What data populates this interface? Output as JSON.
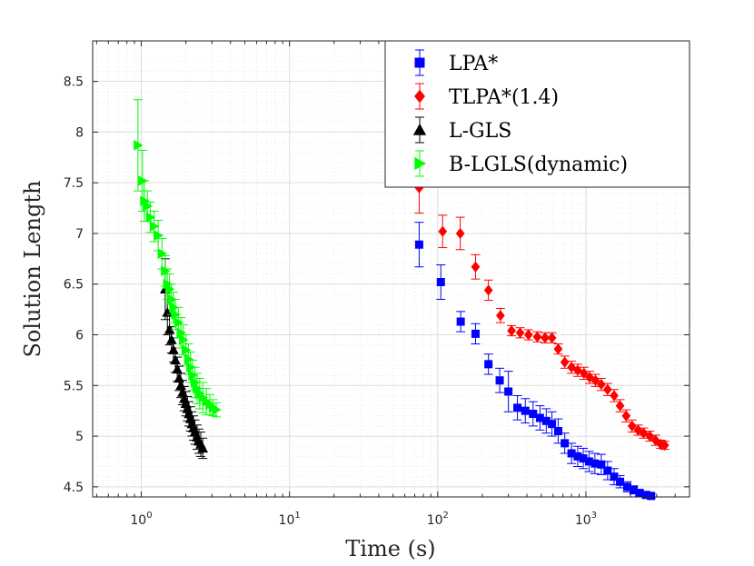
{
  "chart_data": {
    "type": "scatter",
    "xscale": "log",
    "xlabel": "Time (s)",
    "ylabel": "Solution Length",
    "xlim": [
      0.47,
      5000
    ],
    "ylim": [
      4.4,
      8.9
    ],
    "grid": true,
    "legend_position": "top-right",
    "xticks": [
      {
        "value": 1,
        "base": "10",
        "exp": "0"
      },
      {
        "value": 10,
        "base": "10",
        "exp": "1"
      },
      {
        "value": 100,
        "base": "10",
        "exp": "2"
      },
      {
        "value": 1000,
        "base": "10",
        "exp": "3"
      }
    ],
    "yticks": [
      {
        "value": 4.5,
        "label": "4.5"
      },
      {
        "value": 5,
        "label": "5"
      },
      {
        "value": 5.5,
        "label": "5.5"
      },
      {
        "value": 6,
        "label": "6"
      },
      {
        "value": 6.5,
        "label": "6.5"
      },
      {
        "value": 7,
        "label": "7"
      },
      {
        "value": 7.5,
        "label": "7.5"
      },
      {
        "value": 8,
        "label": "8"
      },
      {
        "value": 8.5,
        "label": "8.5"
      }
    ],
    "series": [
      {
        "name": "LPA*",
        "color": "#0000ff",
        "marker": "square",
        "points": [
          {
            "x": 75,
            "y": 6.89,
            "err": 0.22
          },
          {
            "x": 105,
            "y": 6.52,
            "err": 0.17
          },
          {
            "x": 143,
            "y": 6.13,
            "err": 0.1
          },
          {
            "x": 180,
            "y": 6.01,
            "err": 0.1
          },
          {
            "x": 220,
            "y": 5.71,
            "err": 0.1
          },
          {
            "x": 262,
            "y": 5.55,
            "err": 0.12
          },
          {
            "x": 300,
            "y": 5.44,
            "err": 0.2
          },
          {
            "x": 345,
            "y": 5.28,
            "err": 0.12
          },
          {
            "x": 390,
            "y": 5.25,
            "err": 0.12
          },
          {
            "x": 440,
            "y": 5.22,
            "err": 0.12
          },
          {
            "x": 490,
            "y": 5.18,
            "err": 0.12
          },
          {
            "x": 540,
            "y": 5.15,
            "err": 0.12
          },
          {
            "x": 590,
            "y": 5.12,
            "err": 0.12
          },
          {
            "x": 650,
            "y": 5.05,
            "err": 0.12
          },
          {
            "x": 720,
            "y": 4.93,
            "err": 0.1
          },
          {
            "x": 800,
            "y": 4.83,
            "err": 0.1
          },
          {
            "x": 880,
            "y": 4.8,
            "err": 0.1
          },
          {
            "x": 960,
            "y": 4.78,
            "err": 0.1
          },
          {
            "x": 1050,
            "y": 4.75,
            "err": 0.1
          },
          {
            "x": 1150,
            "y": 4.73,
            "err": 0.1
          },
          {
            "x": 1270,
            "y": 4.72,
            "err": 0.1
          },
          {
            "x": 1400,
            "y": 4.66,
            "err": 0.09
          },
          {
            "x": 1550,
            "y": 4.6,
            "err": 0.08
          },
          {
            "x": 1700,
            "y": 4.55,
            "err": 0.06
          },
          {
            "x": 1900,
            "y": 4.5,
            "err": 0.05
          },
          {
            "x": 2100,
            "y": 4.47,
            "err": 0.04
          },
          {
            "x": 2300,
            "y": 4.44,
            "err": 0.03
          },
          {
            "x": 2550,
            "y": 4.42,
            "err": 0.03
          },
          {
            "x": 2750,
            "y": 4.41,
            "err": 0.02
          }
        ]
      },
      {
        "name": "TLPA*(1.4)",
        "color": "#ff0000",
        "marker": "diamond",
        "points": [
          {
            "x": 75,
            "y": 7.45,
            "err": 0.25
          },
          {
            "x": 108,
            "y": 7.02,
            "err": 0.16
          },
          {
            "x": 142,
            "y": 7.0,
            "err": 0.16
          },
          {
            "x": 180,
            "y": 6.67,
            "err": 0.12
          },
          {
            "x": 220,
            "y": 6.44,
            "err": 0.1
          },
          {
            "x": 265,
            "y": 6.19,
            "err": 0.07
          },
          {
            "x": 315,
            "y": 6.04,
            "err": 0.05
          },
          {
            "x": 360,
            "y": 6.02,
            "err": 0.05
          },
          {
            "x": 410,
            "y": 6.0,
            "err": 0.05
          },
          {
            "x": 470,
            "y": 5.98,
            "err": 0.05
          },
          {
            "x": 530,
            "y": 5.97,
            "err": 0.05
          },
          {
            "x": 590,
            "y": 5.97,
            "err": 0.05
          },
          {
            "x": 650,
            "y": 5.86,
            "err": 0.05
          },
          {
            "x": 720,
            "y": 5.73,
            "err": 0.06
          },
          {
            "x": 800,
            "y": 5.68,
            "err": 0.06
          },
          {
            "x": 880,
            "y": 5.65,
            "err": 0.06
          },
          {
            "x": 970,
            "y": 5.62,
            "err": 0.06
          },
          {
            "x": 1060,
            "y": 5.58,
            "err": 0.06
          },
          {
            "x": 1160,
            "y": 5.55,
            "err": 0.06
          },
          {
            "x": 1270,
            "y": 5.51,
            "err": 0.06
          },
          {
            "x": 1400,
            "y": 5.46,
            "err": 0.06
          },
          {
            "x": 1550,
            "y": 5.4,
            "err": 0.06
          },
          {
            "x": 1700,
            "y": 5.3,
            "err": 0.06
          },
          {
            "x": 1870,
            "y": 5.2,
            "err": 0.06
          },
          {
            "x": 2050,
            "y": 5.1,
            "err": 0.06
          },
          {
            "x": 2250,
            "y": 5.06,
            "err": 0.05
          },
          {
            "x": 2450,
            "y": 5.03,
            "err": 0.05
          },
          {
            "x": 2700,
            "y": 5.0,
            "err": 0.05
          },
          {
            "x": 2950,
            "y": 4.96,
            "err": 0.05
          },
          {
            "x": 3200,
            "y": 4.92,
            "err": 0.04
          },
          {
            "x": 3400,
            "y": 4.91,
            "err": 0.04
          }
        ]
      },
      {
        "name": "L-GLS",
        "color": "#000000",
        "marker": "triangle-up",
        "points": [
          {
            "x": 1.45,
            "y": 6.45,
            "err": 0.3
          },
          {
            "x": 1.5,
            "y": 6.22,
            "err": 0.22
          },
          {
            "x": 1.55,
            "y": 6.05,
            "err": 0.15
          },
          {
            "x": 1.6,
            "y": 5.95,
            "err": 0.13
          },
          {
            "x": 1.65,
            "y": 5.85,
            "err": 0.12
          },
          {
            "x": 1.7,
            "y": 5.75,
            "err": 0.12
          },
          {
            "x": 1.75,
            "y": 5.66,
            "err": 0.12
          },
          {
            "x": 1.8,
            "y": 5.57,
            "err": 0.12
          },
          {
            "x": 1.85,
            "y": 5.5,
            "err": 0.12
          },
          {
            "x": 1.9,
            "y": 5.43,
            "err": 0.12
          },
          {
            "x": 1.95,
            "y": 5.37,
            "err": 0.12
          },
          {
            "x": 2.0,
            "y": 5.32,
            "err": 0.12
          },
          {
            "x": 2.05,
            "y": 5.27,
            "err": 0.12
          },
          {
            "x": 2.1,
            "y": 5.22,
            "err": 0.12
          },
          {
            "x": 2.15,
            "y": 5.17,
            "err": 0.12
          },
          {
            "x": 2.2,
            "y": 5.12,
            "err": 0.12
          },
          {
            "x": 2.25,
            "y": 5.08,
            "err": 0.12
          },
          {
            "x": 2.3,
            "y": 5.04,
            "err": 0.12
          },
          {
            "x": 2.38,
            "y": 4.99,
            "err": 0.12
          },
          {
            "x": 2.45,
            "y": 4.95,
            "err": 0.12
          },
          {
            "x": 2.52,
            "y": 4.92,
            "err": 0.12
          },
          {
            "x": 2.6,
            "y": 4.88,
            "err": 0.1
          }
        ]
      },
      {
        "name": "B-LGLS(dynamic)",
        "color": "#00ff00",
        "marker": "triangle-right",
        "points": [
          {
            "x": 0.95,
            "y": 7.87,
            "err": 0.45
          },
          {
            "x": 1.02,
            "y": 7.52,
            "err": 0.3
          },
          {
            "x": 1.05,
            "y": 7.32,
            "err": 0.2
          },
          {
            "x": 1.1,
            "y": 7.27,
            "err": 0.15
          },
          {
            "x": 1.15,
            "y": 7.16,
            "err": 0.15
          },
          {
            "x": 1.22,
            "y": 7.07,
            "err": 0.15
          },
          {
            "x": 1.3,
            "y": 6.98,
            "err": 0.15
          },
          {
            "x": 1.38,
            "y": 6.8,
            "err": 0.15
          },
          {
            "x": 1.45,
            "y": 6.63,
            "err": 0.15
          },
          {
            "x": 1.5,
            "y": 6.5,
            "err": 0.15
          },
          {
            "x": 1.55,
            "y": 6.45,
            "err": 0.15
          },
          {
            "x": 1.6,
            "y": 6.35,
            "err": 0.15
          },
          {
            "x": 1.65,
            "y": 6.27,
            "err": 0.15
          },
          {
            "x": 1.7,
            "y": 6.2,
            "err": 0.15
          },
          {
            "x": 1.78,
            "y": 6.12,
            "err": 0.15
          },
          {
            "x": 1.85,
            "y": 6.02,
            "err": 0.15
          },
          {
            "x": 1.92,
            "y": 5.95,
            "err": 0.15
          },
          {
            "x": 2.0,
            "y": 5.85,
            "err": 0.15
          },
          {
            "x": 2.08,
            "y": 5.76,
            "err": 0.15
          },
          {
            "x": 2.15,
            "y": 5.68,
            "err": 0.15
          },
          {
            "x": 2.22,
            "y": 5.6,
            "err": 0.15
          },
          {
            "x": 2.3,
            "y": 5.53,
            "err": 0.15
          },
          {
            "x": 2.38,
            "y": 5.47,
            "err": 0.15
          },
          {
            "x": 2.48,
            "y": 5.42,
            "err": 0.15
          },
          {
            "x": 2.6,
            "y": 5.38,
            "err": 0.15
          },
          {
            "x": 2.75,
            "y": 5.34,
            "err": 0.13
          },
          {
            "x": 2.9,
            "y": 5.31,
            "err": 0.1
          },
          {
            "x": 3.05,
            "y": 5.28,
            "err": 0.08
          },
          {
            "x": 3.2,
            "y": 5.26,
            "err": 0.07
          }
        ]
      }
    ]
  }
}
